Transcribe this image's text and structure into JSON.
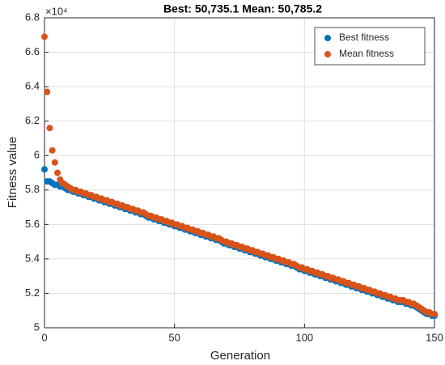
{
  "chart_data": {
    "type": "scatter",
    "title": "Best: 50,735.1 Mean: 50,785.2",
    "x_label": "Generation",
    "y_label": "Fitness value",
    "y_exponent": "×10⁴",
    "xlim": [
      0,
      150
    ],
    "xticks": [
      0,
      50,
      100,
      150
    ],
    "ylim": [
      5,
      6.8
    ],
    "yticks": [
      5,
      5.2,
      5.4,
      5.6,
      5.8,
      6,
      6.2,
      6.4,
      6.6,
      6.8
    ],
    "grid": true,
    "legend": "upper right",
    "x": [
      0,
      1,
      2,
      3,
      4,
      5,
      6,
      7,
      8,
      9,
      10,
      11,
      12,
      13,
      14,
      15,
      16,
      17,
      18,
      19,
      20,
      21,
      22,
      23,
      24,
      25,
      26,
      27,
      28,
      29,
      30,
      31,
      32,
      33,
      34,
      35,
      36,
      37,
      38,
      39,
      40,
      41,
      42,
      43,
      44,
      45,
      46,
      47,
      48,
      49,
      50,
      51,
      52,
      53,
      54,
      55,
      56,
      57,
      58,
      59,
      60,
      61,
      62,
      63,
      64,
      65,
      66,
      67,
      68,
      69,
      70,
      71,
      72,
      73,
      74,
      75,
      76,
      77,
      78,
      79,
      80,
      81,
      82,
      83,
      84,
      85,
      86,
      87,
      88,
      89,
      90,
      91,
      92,
      93,
      94,
      95,
      96,
      97,
      98,
      99,
      100,
      101,
      102,
      103,
      104,
      105,
      106,
      107,
      108,
      109,
      110,
      111,
      112,
      113,
      114,
      115,
      116,
      117,
      118,
      119,
      120,
      121,
      122,
      123,
      124,
      125,
      126,
      127,
      128,
      129,
      130,
      131,
      132,
      133,
      134,
      135,
      136,
      137,
      138,
      139,
      140,
      141,
      142,
      143,
      144,
      145,
      146,
      147,
      148,
      149,
      150
    ],
    "series": [
      {
        "name": "Best fitness",
        "color": "#0072bd",
        "values": [
          5.92,
          5.85,
          5.85,
          5.84,
          5.83,
          5.83,
          5.82,
          5.82,
          5.81,
          5.8,
          5.8,
          5.79,
          5.79,
          5.78,
          5.78,
          5.77,
          5.77,
          5.76,
          5.76,
          5.75,
          5.75,
          5.74,
          5.74,
          5.73,
          5.73,
          5.72,
          5.72,
          5.71,
          5.71,
          5.7,
          5.7,
          5.69,
          5.69,
          5.68,
          5.68,
          5.67,
          5.67,
          5.66,
          5.66,
          5.65,
          5.64,
          5.64,
          5.63,
          5.63,
          5.62,
          5.62,
          5.61,
          5.61,
          5.6,
          5.6,
          5.59,
          5.59,
          5.58,
          5.58,
          5.57,
          5.57,
          5.56,
          5.56,
          5.55,
          5.55,
          5.54,
          5.54,
          5.53,
          5.53,
          5.52,
          5.52,
          5.51,
          5.51,
          5.5,
          5.49,
          5.49,
          5.48,
          5.48,
          5.47,
          5.47,
          5.46,
          5.46,
          5.45,
          5.45,
          5.44,
          5.44,
          5.43,
          5.43,
          5.42,
          5.42,
          5.41,
          5.41,
          5.4,
          5.4,
          5.39,
          5.39,
          5.38,
          5.38,
          5.37,
          5.37,
          5.36,
          5.36,
          5.35,
          5.34,
          5.34,
          5.33,
          5.33,
          5.32,
          5.32,
          5.31,
          5.31,
          5.3,
          5.3,
          5.29,
          5.29,
          5.28,
          5.28,
          5.27,
          5.27,
          5.26,
          5.26,
          5.25,
          5.25,
          5.24,
          5.24,
          5.23,
          5.23,
          5.22,
          5.22,
          5.21,
          5.21,
          5.2,
          5.2,
          5.19,
          5.19,
          5.18,
          5.18,
          5.17,
          5.17,
          5.16,
          5.16,
          5.15,
          5.15,
          5.15,
          5.14,
          5.14,
          5.13,
          5.13,
          5.12,
          5.11,
          5.1,
          5.09,
          5.08,
          5.08,
          5.07,
          5.07
        ]
      },
      {
        "name": "Mean fitness",
        "color": "#d95319",
        "values": [
          6.69,
          6.37,
          6.16,
          6.03,
          5.96,
          5.9,
          5.86,
          5.84,
          5.83,
          5.82,
          5.81,
          5.8,
          5.8,
          5.79,
          5.79,
          5.78,
          5.78,
          5.77,
          5.77,
          5.76,
          5.76,
          5.75,
          5.75,
          5.74,
          5.74,
          5.73,
          5.73,
          5.72,
          5.72,
          5.71,
          5.71,
          5.7,
          5.7,
          5.69,
          5.69,
          5.68,
          5.68,
          5.67,
          5.67,
          5.66,
          5.65,
          5.65,
          5.64,
          5.64,
          5.63,
          5.63,
          5.62,
          5.62,
          5.61,
          5.61,
          5.6,
          5.6,
          5.59,
          5.59,
          5.58,
          5.58,
          5.57,
          5.57,
          5.56,
          5.56,
          5.55,
          5.55,
          5.54,
          5.54,
          5.53,
          5.53,
          5.52,
          5.52,
          5.51,
          5.5,
          5.5,
          5.49,
          5.49,
          5.48,
          5.48,
          5.47,
          5.47,
          5.46,
          5.46,
          5.45,
          5.45,
          5.44,
          5.44,
          5.43,
          5.43,
          5.42,
          5.42,
          5.41,
          5.41,
          5.4,
          5.4,
          5.39,
          5.39,
          5.38,
          5.38,
          5.37,
          5.37,
          5.36,
          5.35,
          5.35,
          5.34,
          5.34,
          5.33,
          5.33,
          5.32,
          5.32,
          5.31,
          5.31,
          5.3,
          5.3,
          5.29,
          5.29,
          5.28,
          5.28,
          5.27,
          5.27,
          5.26,
          5.26,
          5.25,
          5.25,
          5.24,
          5.24,
          5.23,
          5.23,
          5.22,
          5.22,
          5.21,
          5.21,
          5.2,
          5.2,
          5.19,
          5.19,
          5.18,
          5.18,
          5.17,
          5.17,
          5.16,
          5.16,
          5.16,
          5.15,
          5.15,
          5.14,
          5.14,
          5.13,
          5.12,
          5.11,
          5.1,
          5.09,
          5.09,
          5.08,
          5.08
        ]
      }
    ]
  }
}
